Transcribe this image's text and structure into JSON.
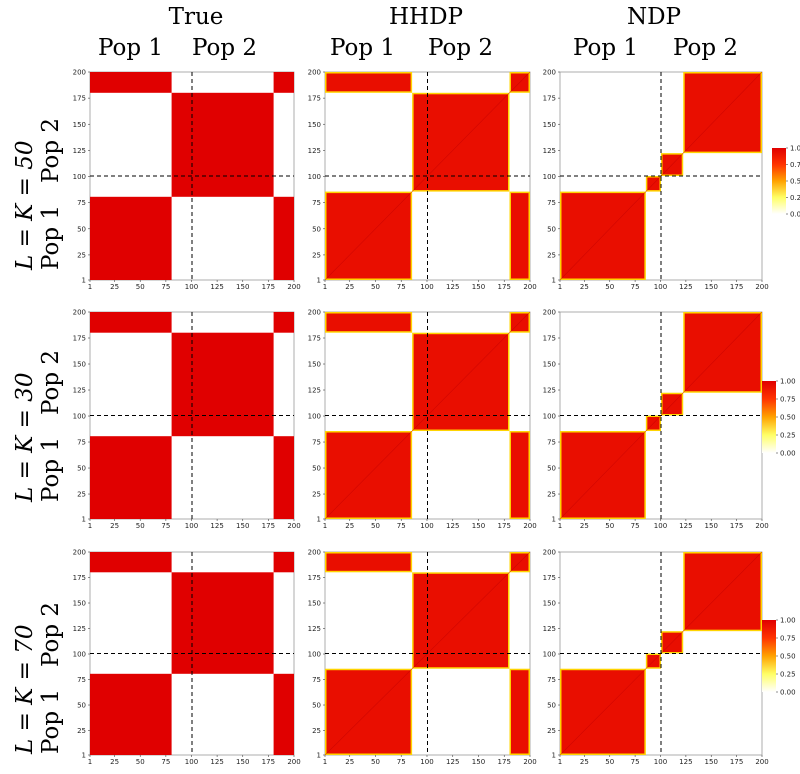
{
  "columns": [
    {
      "title": "True",
      "pop_left": "Pop 1",
      "pop_right": "Pop 2"
    },
    {
      "title": "HHDP",
      "pop_left": "Pop 1",
      "pop_right": "Pop 2"
    },
    {
      "title": "NDP",
      "pop_left": "Pop 1",
      "pop_right": "Pop 2"
    }
  ],
  "rows": [
    {
      "lk": "L = K = 50",
      "pops": "Pop 1   Pop 2"
    },
    {
      "lk": "L = K = 30",
      "pops": "Pop 1   Pop 2"
    },
    {
      "lk": "L = K = 70",
      "pops": "Pop 1   Pop 2"
    }
  ],
  "chart_data": {
    "type": "heatmap",
    "description_axes": "co-clustering probability matrix, 200 x 200 subjects",
    "x_ticks": [
      "1",
      "25",
      "50",
      "75",
      "100",
      "125",
      "150",
      "175",
      "200"
    ],
    "y_ticks": [
      "1",
      "25",
      "50",
      "75",
      "100",
      "125",
      "150",
      "175",
      "200"
    ],
    "xlim": [
      1,
      200
    ],
    "ylim": [
      1,
      200
    ],
    "reference_line": 100,
    "colorscale": [
      "#ffffff",
      "#ffff66",
      "#ffa200",
      "#ff3300",
      "#e00000"
    ],
    "legend_ticks": [
      "1.00",
      "0.75",
      "0.50",
      "0.25",
      "0.00"
    ],
    "legend_range": [
      0,
      1
    ],
    "panels": [
      {
        "row": 0,
        "col": 0,
        "model": "True",
        "blocks": [
          [
            1,
            80
          ],
          [
            81,
            180
          ],
          [
            181,
            200
          ]
        ],
        "block_groups": [
          0,
          1,
          0
        ],
        "value": 1.0
      },
      {
        "row": 0,
        "col": 1,
        "model": "HHDP",
        "blocks": [
          [
            1,
            85
          ],
          [
            86,
            180
          ],
          [
            181,
            200
          ]
        ],
        "block_groups": [
          0,
          1,
          0
        ],
        "value": 0.93
      },
      {
        "row": 0,
        "col": 2,
        "model": "NDP",
        "blocks": [
          [
            1,
            85
          ],
          [
            86,
            100
          ],
          [
            101,
            122
          ],
          [
            123,
            200
          ]
        ],
        "block_groups": [
          0,
          1,
          2,
          3
        ],
        "value": 0.93
      },
      {
        "row": 1,
        "col": 0,
        "model": "True",
        "blocks": [
          [
            1,
            80
          ],
          [
            81,
            180
          ],
          [
            181,
            200
          ]
        ],
        "block_groups": [
          0,
          1,
          0
        ],
        "value": 1.0
      },
      {
        "row": 1,
        "col": 1,
        "model": "HHDP",
        "blocks": [
          [
            1,
            85
          ],
          [
            86,
            180
          ],
          [
            181,
            200
          ]
        ],
        "block_groups": [
          0,
          1,
          0
        ],
        "value": 0.93
      },
      {
        "row": 1,
        "col": 2,
        "model": "NDP",
        "blocks": [
          [
            1,
            85
          ],
          [
            86,
            100
          ],
          [
            101,
            122
          ],
          [
            123,
            200
          ]
        ],
        "block_groups": [
          0,
          1,
          2,
          3
        ],
        "value": 0.93
      },
      {
        "row": 2,
        "col": 0,
        "model": "True",
        "blocks": [
          [
            1,
            80
          ],
          [
            81,
            180
          ],
          [
            181,
            200
          ]
        ],
        "block_groups": [
          0,
          1,
          0
        ],
        "value": 1.0
      },
      {
        "row": 2,
        "col": 1,
        "model": "HHDP",
        "blocks": [
          [
            1,
            85
          ],
          [
            86,
            180
          ],
          [
            181,
            200
          ]
        ],
        "block_groups": [
          0,
          1,
          0
        ],
        "value": 0.93
      },
      {
        "row": 2,
        "col": 2,
        "model": "NDP",
        "blocks": [
          [
            1,
            85
          ],
          [
            86,
            100
          ],
          [
            101,
            122
          ],
          [
            123,
            200
          ]
        ],
        "block_groups": [
          0,
          1,
          2,
          3
        ],
        "value": 0.93
      }
    ]
  }
}
